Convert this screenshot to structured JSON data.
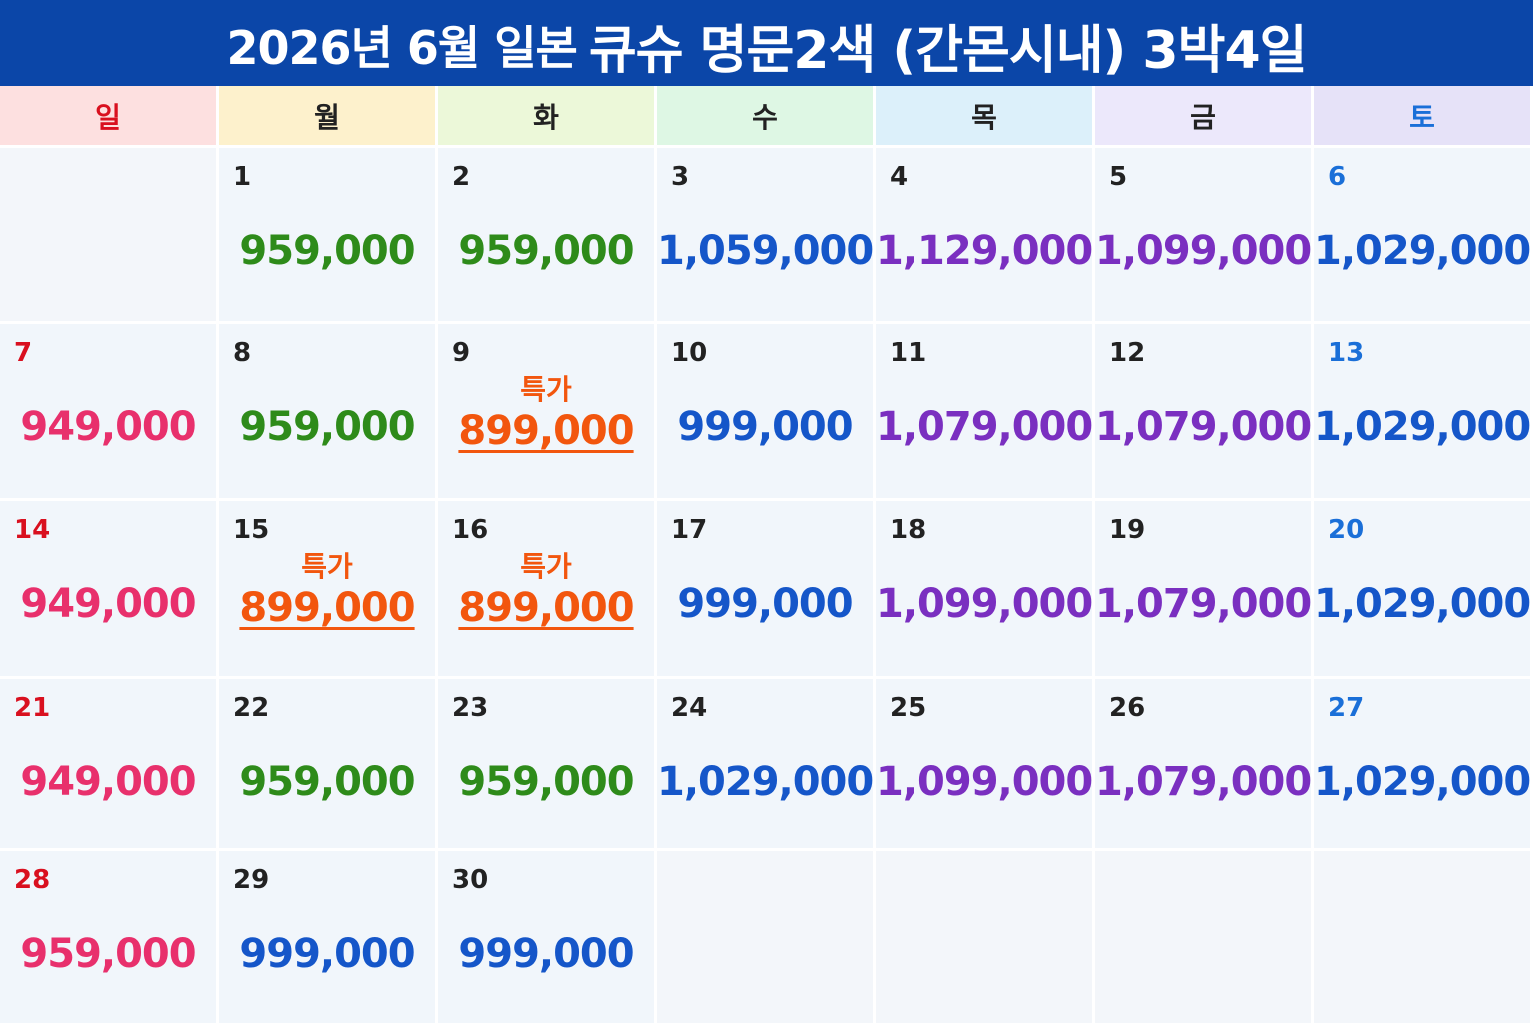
{
  "title": {
    "part1": "2026년 6월 일본",
    "part2": "큐슈 명문2색 (간몬시내) 3박4일"
  },
  "colors": {
    "title_bg": "#0b46a8",
    "sun_header": "#fde0e0",
    "mon_header": "#fdf1cc",
    "tue_header": "#ecf8d9",
    "wed_header": "#def7e4",
    "thu_header": "#dcf0fa",
    "fri_header": "#ece8fb",
    "sat_header": "#e6e2f8",
    "green_price": "#2e8b1a",
    "blue_price": "#1556c9",
    "purple_price": "#7a2fc0",
    "pink_price": "#e8306c",
    "special_orange": "#f2560e"
  },
  "weekdays": [
    "일",
    "월",
    "화",
    "수",
    "목",
    "금",
    "토"
  ],
  "special_label": "특가",
  "weeks": [
    [
      null,
      {
        "day": "1",
        "price": "959,000",
        "color": "#2e8b1a"
      },
      {
        "day": "2",
        "price": "959,000",
        "color": "#2e8b1a"
      },
      {
        "day": "3",
        "price": "1,059,000",
        "color": "#1556c9"
      },
      {
        "day": "4",
        "price": "1,129,000",
        "color": "#7a2fc0"
      },
      {
        "day": "5",
        "price": "1,099,000",
        "color": "#7a2fc0"
      },
      {
        "day": "6",
        "price": "1,029,000",
        "color": "#1556c9"
      }
    ],
    [
      {
        "day": "7",
        "price": "949,000",
        "color": "#e8306c"
      },
      {
        "day": "8",
        "price": "959,000",
        "color": "#2e8b1a"
      },
      {
        "day": "9",
        "price": "899,000",
        "color": "#f2560e",
        "special": true
      },
      {
        "day": "10",
        "price": "999,000",
        "color": "#1556c9"
      },
      {
        "day": "11",
        "price": "1,079,000",
        "color": "#7a2fc0"
      },
      {
        "day": "12",
        "price": "1,079,000",
        "color": "#7a2fc0"
      },
      {
        "day": "13",
        "price": "1,029,000",
        "color": "#1556c9"
      }
    ],
    [
      {
        "day": "14",
        "price": "949,000",
        "color": "#e8306c"
      },
      {
        "day": "15",
        "price": "899,000",
        "color": "#f2560e",
        "special": true
      },
      {
        "day": "16",
        "price": "899,000",
        "color": "#f2560e",
        "special": true
      },
      {
        "day": "17",
        "price": "999,000",
        "color": "#1556c9"
      },
      {
        "day": "18",
        "price": "1,099,000",
        "color": "#7a2fc0"
      },
      {
        "day": "19",
        "price": "1,079,000",
        "color": "#7a2fc0"
      },
      {
        "day": "20",
        "price": "1,029,000",
        "color": "#1556c9"
      }
    ],
    [
      {
        "day": "21",
        "price": "949,000",
        "color": "#e8306c"
      },
      {
        "day": "22",
        "price": "959,000",
        "color": "#2e8b1a"
      },
      {
        "day": "23",
        "price": "959,000",
        "color": "#2e8b1a"
      },
      {
        "day": "24",
        "price": "1,029,000",
        "color": "#1556c9"
      },
      {
        "day": "25",
        "price": "1,099,000",
        "color": "#7a2fc0"
      },
      {
        "day": "26",
        "price": "1,079,000",
        "color": "#7a2fc0"
      },
      {
        "day": "27",
        "price": "1,029,000",
        "color": "#1556c9"
      }
    ],
    [
      {
        "day": "28",
        "price": "959,000",
        "color": "#e8306c"
      },
      {
        "day": "29",
        "price": "999,000",
        "color": "#1556c9"
      },
      {
        "day": "30",
        "price": "999,000",
        "color": "#1556c9"
      },
      null,
      null,
      null,
      null
    ]
  ]
}
